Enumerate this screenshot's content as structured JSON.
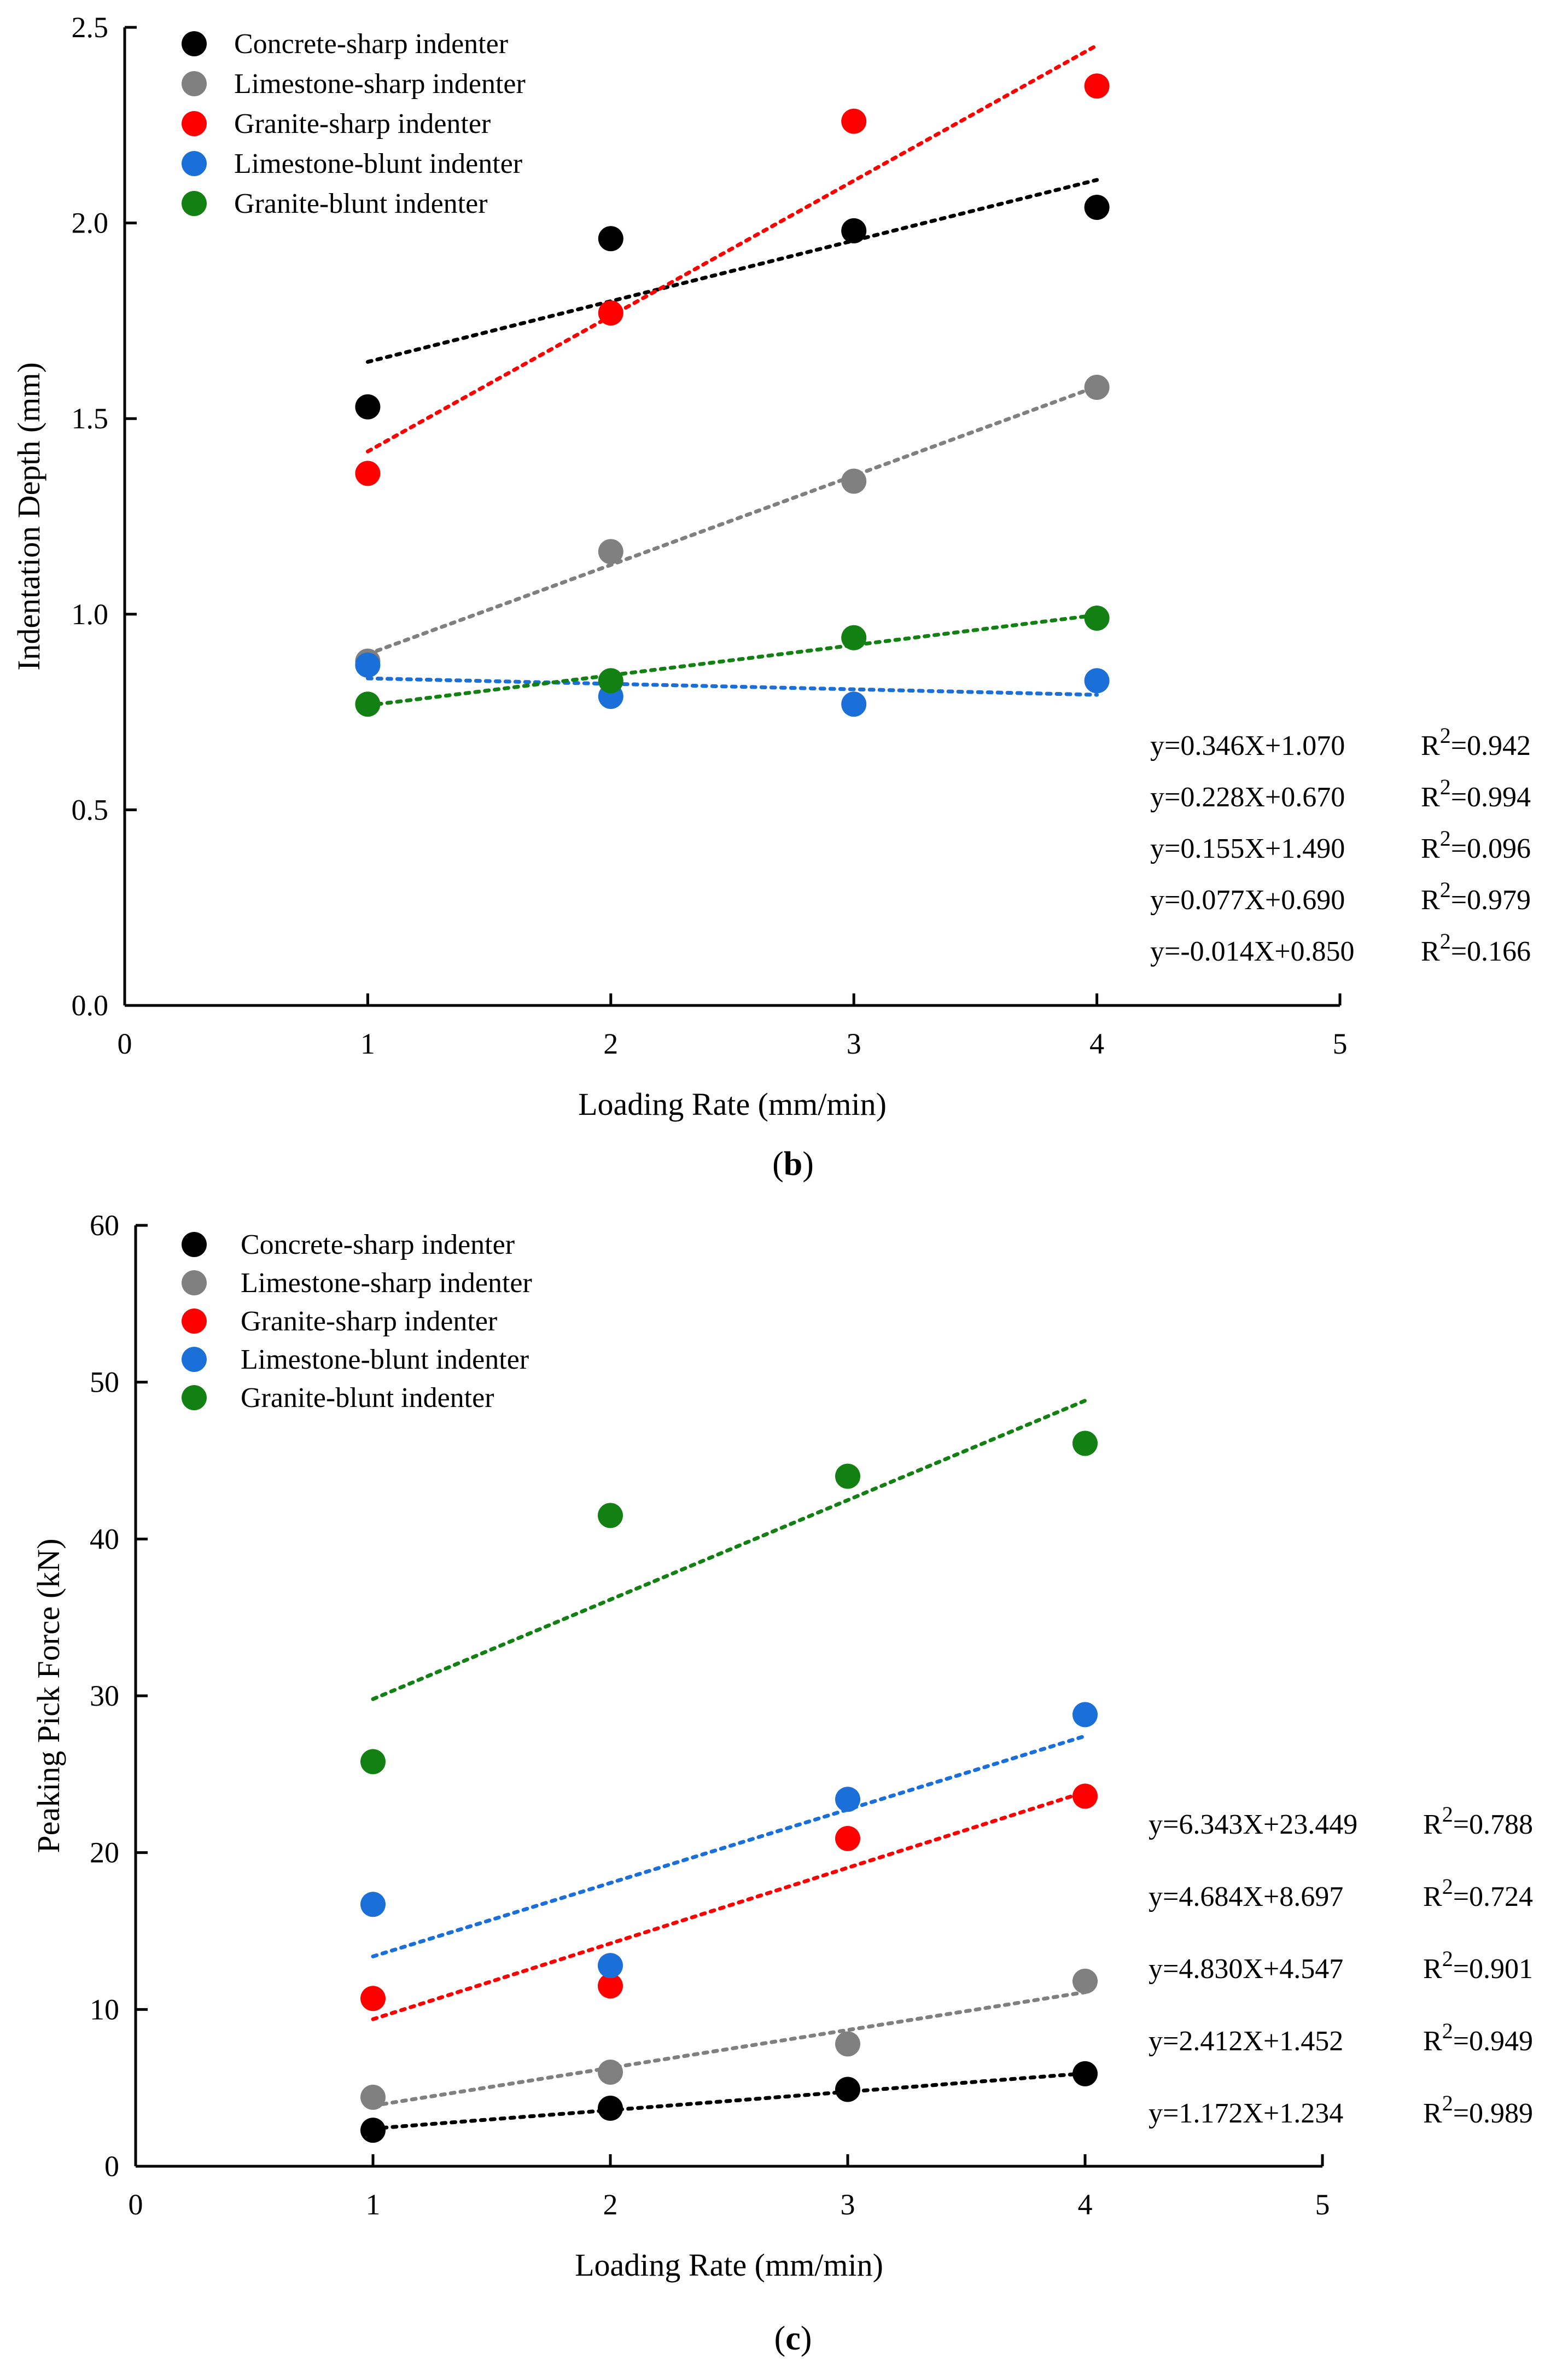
{
  "chart_data": [
    {
      "type": "scatter",
      "panel_label": "(b)",
      "panel_letter": "b",
      "xlabel": "Loading Rate (mm/min)",
      "ylabel": "Indentation Depth (mm)",
      "xlim": [
        0,
        5
      ],
      "ylim": [
        0,
        2.5
      ],
      "xticks": [
        0,
        1,
        2,
        3,
        4,
        5
      ],
      "yticks": [
        0.0,
        0.5,
        1.0,
        1.5,
        2.0,
        2.5
      ],
      "xtick_labels": [
        "0",
        "1",
        "2",
        "3",
        "4",
        "5"
      ],
      "ytick_labels": [
        "0.0",
        "0.5",
        "1.0",
        "1.5",
        "2.0",
        "2.5"
      ],
      "legend_position": "top-left",
      "series": [
        {
          "name": "Concrete-sharp indenter",
          "color": "#000000",
          "x": [
            1,
            2,
            3,
            4
          ],
          "y": [
            1.53,
            1.96,
            1.98,
            2.04
          ],
          "fit": {
            "slope": 0.155,
            "intercept": 1.49
          },
          "equation": "y=0.155X+1.490",
          "r2_label": "R",
          "r2_sup": "2",
          "r2_value": "=0.096"
        },
        {
          "name": "Limestone-sharp indenter",
          "color": "#808080",
          "x": [
            1,
            2,
            3,
            4
          ],
          "y": [
            0.88,
            1.16,
            1.34,
            1.58
          ],
          "fit": {
            "slope": 0.228,
            "intercept": 0.67
          },
          "equation": "y=0.228X+0.670",
          "r2_label": "R",
          "r2_sup": "2",
          "r2_value": "=0.994"
        },
        {
          "name": "Granite-sharp indenter",
          "color": "#ff0000",
          "x": [
            1,
            2,
            3,
            4
          ],
          "y": [
            1.36,
            1.77,
            2.26,
            2.35
          ],
          "fit": {
            "slope": 0.346,
            "intercept": 1.07
          },
          "equation": "y=0.346X+1.070",
          "r2_label": "R",
          "r2_sup": "2",
          "r2_value": "=0.942"
        },
        {
          "name": "Limestone-blunt indenter",
          "color": "#1a6fd8",
          "x": [
            1,
            2,
            3,
            4
          ],
          "y": [
            0.87,
            0.79,
            0.77,
            0.83
          ],
          "fit": {
            "slope": -0.014,
            "intercept": 0.85
          },
          "equation": "y=-0.014X+0.850",
          "r2_label": "R",
          "r2_sup": "2",
          "r2_value": "=0.166"
        },
        {
          "name": "Granite-blunt indenter",
          "color": "#138013",
          "x": [
            1,
            2,
            3,
            4
          ],
          "y": [
            0.77,
            0.83,
            0.94,
            0.99
          ],
          "fit": {
            "slope": 0.077,
            "intercept": 0.69
          },
          "equation": "y=0.077X+0.690",
          "r2_label": "R",
          "r2_sup": "2",
          "r2_value": "=0.979"
        }
      ],
      "equation_order": [
        2,
        1,
        0,
        4,
        3
      ]
    },
    {
      "type": "scatter",
      "panel_label": "(c)",
      "panel_letter": "c",
      "xlabel": "Loading Rate (mm/min)",
      "ylabel": "Peaking Pick Force (kN)",
      "xlim": [
        0,
        5
      ],
      "ylim": [
        0,
        60
      ],
      "xticks": [
        0,
        1,
        2,
        3,
        4,
        5
      ],
      "yticks": [
        0,
        10,
        20,
        30,
        40,
        50,
        60
      ],
      "xtick_labels": [
        "0",
        "1",
        "2",
        "3",
        "4",
        "5"
      ],
      "ytick_labels": [
        "0",
        "10",
        "20",
        "30",
        "40",
        "50",
        "60"
      ],
      "legend_position": "top-left",
      "series": [
        {
          "name": "Concrete-sharp indenter",
          "color": "#000000",
          "x": [
            1,
            2,
            3,
            4
          ],
          "y": [
            2.3,
            3.7,
            4.9,
            5.9
          ],
          "fit": {
            "slope": 1.172,
            "intercept": 1.234
          },
          "equation": "y=1.172X+1.234",
          "r2_label": "R",
          "r2_sup": "2",
          "r2_value": "=0.989"
        },
        {
          "name": "Limestone-sharp indenter",
          "color": "#808080",
          "x": [
            1,
            2,
            3,
            4
          ],
          "y": [
            4.4,
            6.0,
            7.8,
            11.8
          ],
          "fit": {
            "slope": 2.412,
            "intercept": 1.452
          },
          "equation": "y=2.412X+1.452",
          "r2_label": "R",
          "r2_sup": "2",
          "r2_value": "=0.949"
        },
        {
          "name": "Granite-sharp indenter",
          "color": "#ff0000",
          "x": [
            1,
            2,
            3,
            4
          ],
          "y": [
            10.7,
            11.5,
            20.9,
            23.6
          ],
          "fit": {
            "slope": 4.83,
            "intercept": 4.547
          },
          "equation": "y=4.830X+4.547",
          "r2_label": "R",
          "r2_sup": "2",
          "r2_value": "=0.901"
        },
        {
          "name": "Limestone-blunt indenter",
          "color": "#1a6fd8",
          "x": [
            1,
            2,
            3,
            4
          ],
          "y": [
            16.7,
            12.8,
            23.4,
            28.8
          ],
          "fit": {
            "slope": 4.684,
            "intercept": 8.697
          },
          "equation": "y=4.684X+8.697",
          "r2_label": "R",
          "r2_sup": "2",
          "r2_value": "=0.724"
        },
        {
          "name": "Granite-blunt indenter",
          "color": "#138013",
          "x": [
            1,
            2,
            3,
            4
          ],
          "y": [
            25.8,
            41.5,
            44.0,
            46.1
          ],
          "fit": {
            "slope": 6.343,
            "intercept": 23.449
          },
          "equation": "y=6.343X+23.449",
          "r2_label": "R",
          "r2_sup": "2",
          "r2_value": "=0.788"
        }
      ],
      "equation_order": [
        4,
        3,
        2,
        1,
        0
      ]
    }
  ]
}
